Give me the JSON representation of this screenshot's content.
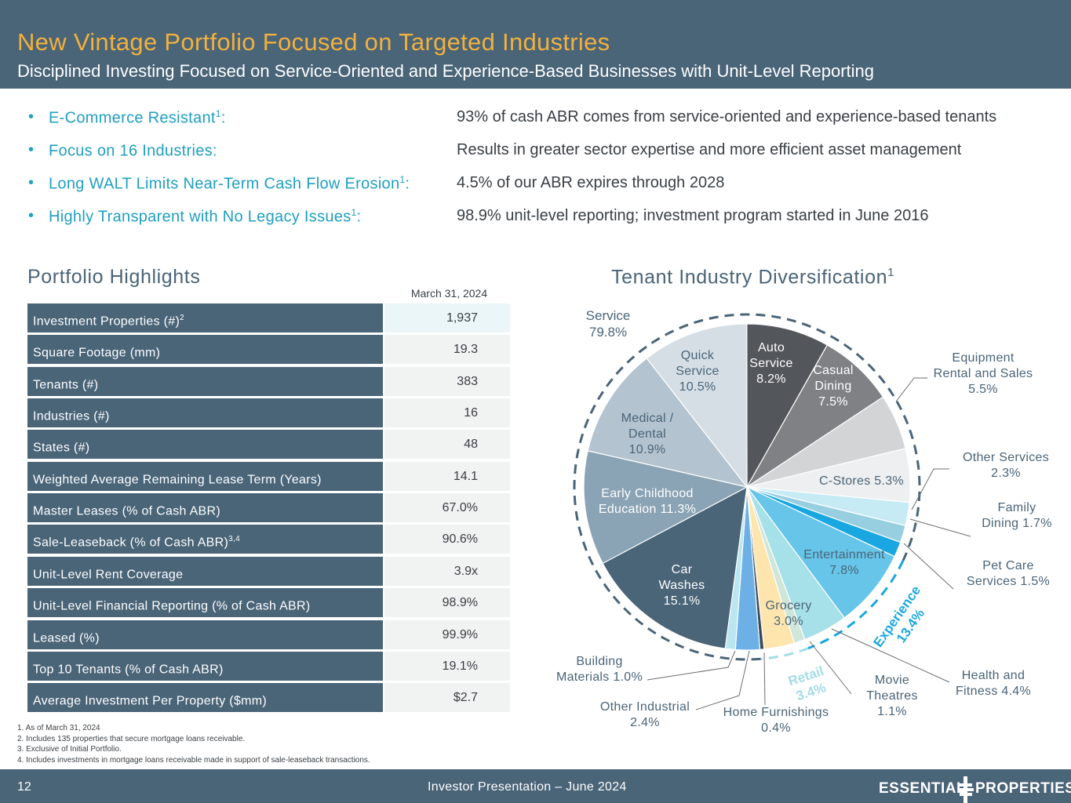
{
  "header": {
    "title": "New Vintage Portfolio Focused on Targeted Industries",
    "subtitle": "Disciplined Investing Focused on Service-Oriented and Experience-Based Businesses with Unit-Level Reporting"
  },
  "bullets": [
    {
      "label": "E-Commerce Resistant",
      "sup": "1",
      "suffix": ":",
      "text": "93% of cash ABR comes from service-oriented and experience-based tenants"
    },
    {
      "label": "Focus on 16 Industries:",
      "sup": "",
      "suffix": "",
      "text": "Results in greater sector expertise and more efficient asset management"
    },
    {
      "label": "Long WALT Limits Near-Term Cash Flow Erosion",
      "sup": "1",
      "suffix": ":",
      "text": "4.5% of our ABR expires through 2028"
    },
    {
      "label": "Highly Transparent with No Legacy Issues",
      "sup": "1",
      "suffix": ":",
      "text": "98.9% unit-level reporting; investment program started in June 2016"
    }
  ],
  "highlights": {
    "title": "Portfolio Highlights",
    "as_of": "March 31, 2024",
    "rows": [
      {
        "label": "Investment Properties (#)",
        "sup": "2",
        "value": "1,937"
      },
      {
        "label": "Square Footage (mm)",
        "sup": "",
        "value": "19.3"
      },
      {
        "label": "Tenants (#)",
        "sup": "",
        "value": "383"
      },
      {
        "label": "Industries (#)",
        "sup": "",
        "value": "16"
      },
      {
        "label": "States (#)",
        "sup": "",
        "value": "48"
      },
      {
        "label": "Weighted Average Remaining Lease Term (Years)",
        "sup": "",
        "value": "14.1"
      },
      {
        "label": "Master Leases (% of Cash ABR)",
        "sup": "",
        "value": "67.0%"
      },
      {
        "label": "Sale-Leaseback (% of Cash ABR)",
        "sup": "3,4",
        "value": "90.6%"
      },
      {
        "label": "Unit-Level Rent Coverage",
        "sup": "",
        "value": "3.9x"
      },
      {
        "label": "Unit-Level Financial Reporting (% of Cash ABR)",
        "sup": "",
        "value": "98.9%"
      },
      {
        "label": "Leased (%)",
        "sup": "",
        "value": "99.9%"
      },
      {
        "label": "Top 10 Tenants (% of Cash ABR)",
        "sup": "",
        "value": "19.1%"
      },
      {
        "label": "Average Investment Per Property ($mm)",
        "sup": "",
        "value": "$2.7"
      }
    ]
  },
  "chart_data": {
    "type": "pie",
    "title": "Tenant Industry Diversification",
    "title_sup": "1",
    "slices": [
      {
        "name": "Auto Service",
        "value": 8.2,
        "label": [
          "Auto",
          "Service",
          "8.2%"
        ],
        "color": "#53575c",
        "text_color": "#ffffff"
      },
      {
        "name": "Casual Dining",
        "value": 7.5,
        "label": [
          "Casual",
          "Dining",
          "7.5%"
        ],
        "color": "#7f8184",
        "text_color": "#ffffff"
      },
      {
        "name": "Equipment Rental and Sales",
        "value": 5.5,
        "label": [
          "Equipment",
          "Rental and Sales",
          "5.5%"
        ],
        "color": "#d3d4d5",
        "text_color": "#4a6478"
      },
      {
        "name": "C-Stores",
        "value": 5.3,
        "label": [
          "C-Stores 5.3%"
        ],
        "color": "#eeeff0",
        "text_color": "#4a6478"
      },
      {
        "name": "Other Services",
        "value": 2.3,
        "label": [
          "Other Services",
          "2.3%"
        ],
        "color": "#c7ebf5",
        "text_color": "#4a6478"
      },
      {
        "name": "Family Dining",
        "value": 1.7,
        "label": [
          "Family",
          "Dining 1.7%"
        ],
        "color": "#98cfe0",
        "text_color": "#4a6478"
      },
      {
        "name": "Pet Care Services",
        "value": 1.5,
        "label": [
          "Pet Care",
          "Services 1.5%"
        ],
        "color": "#1aa7e1",
        "text_color": "#4a6478"
      },
      {
        "name": "Entertainment",
        "value": 7.8,
        "label": [
          "Entertainment",
          "7.8%"
        ],
        "color": "#66c5e8",
        "text_color": "#4a6478"
      },
      {
        "name": "Health and Fitness",
        "value": 4.4,
        "label": [
          "Health and",
          "Fitness 4.4%"
        ],
        "color": "#a6e0e8",
        "text_color": "#4a6478"
      },
      {
        "name": "Movie Theatres",
        "value": 1.1,
        "label": [
          "Movie",
          "Theatres",
          "1.1%"
        ],
        "color": "#cfe6d9",
        "text_color": "#4a6478"
      },
      {
        "name": "Grocery",
        "value": 3.0,
        "label": [
          "Grocery",
          "3.0%"
        ],
        "color": "#fde5ad",
        "text_color": "#4a6478"
      },
      {
        "name": "Home Furnishings",
        "value": 0.4,
        "label": [
          "Home Furnishings",
          "0.4%"
        ],
        "color": "#3b4a58",
        "text_color": "#4a6478"
      },
      {
        "name": "Other Industrial",
        "value": 2.4,
        "label": [
          "Other Industrial",
          "2.4%"
        ],
        "color": "#6cb0e6",
        "text_color": "#4a6478"
      },
      {
        "name": "Building Materials",
        "value": 1.0,
        "label": [
          "Building",
          "Materials 1.0%"
        ],
        "color": "#b9e6f0",
        "text_color": "#4a6478"
      },
      {
        "name": "Car Washes",
        "value": 15.1,
        "label": [
          "Car",
          "Washes",
          "15.1%"
        ],
        "color": "#4a6478",
        "text_color": "#ffffff"
      },
      {
        "name": "Early Childhood Education",
        "value": 11.3,
        "label": [
          "Early Childhood",
          "Education 11.3%"
        ],
        "color": "#8aa3b5",
        "text_color": "#ffffff"
      },
      {
        "name": "Medical / Dental",
        "value": 10.9,
        "label": [
          "Medical /",
          "Dental",
          "10.9%"
        ],
        "color": "#b3c3cf",
        "text_color": "#4a6478"
      },
      {
        "name": "Quick Service",
        "value": 10.5,
        "label": [
          "Quick",
          "Service",
          "10.5%"
        ],
        "color": "#d5dee5",
        "text_color": "#4a6478"
      }
    ],
    "groups": [
      {
        "name": "Service",
        "value": "79.8%",
        "color": "#4a6478"
      },
      {
        "name": "Experience",
        "value": "13.4%",
        "color": "#1aa7e1"
      },
      {
        "name": "Retail",
        "value": "3.4%",
        "color": "#a3dce8"
      }
    ]
  },
  "footnotes": [
    "1.  As of March 31, 2024",
    "2.  Includes 135 properties that secure mortgage loans receivable.",
    "3.  Exclusive of Initial Portfolio.",
    "4.  Includes investments in mortgage loans receivable made in support of sale-leaseback transactions."
  ],
  "footer": {
    "page": "12",
    "presentation": "Investor Presentation – June 2024",
    "logo_left": "ESSENTIAL",
    "logo_right": "PROPERTIES",
    "logo_icon": "essential-properties-mark-icon"
  }
}
